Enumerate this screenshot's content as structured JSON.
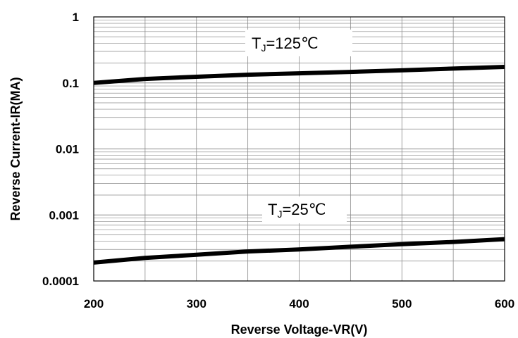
{
  "chart_data": {
    "type": "line",
    "title": "",
    "xlabel": "Reverse Voltage-VR(V)",
    "ylabel": "Reverse Current-IR(MA)",
    "xlim": [
      200,
      600
    ],
    "ylim": [
      0.0001,
      1
    ],
    "yscale": "log",
    "grid": true,
    "x_ticks": [
      "200",
      "300",
      "400",
      "500",
      "600"
    ],
    "y_ticks": [
      "0.0001",
      "0.001",
      "0.01",
      "0.1",
      "1"
    ],
    "series": [
      {
        "name": "TJ=125℃",
        "label_main": "T",
        "label_sub": "J",
        "label_rest": "=125℃",
        "color": "#000000",
        "x": [
          200,
          250,
          300,
          350,
          400,
          450,
          500,
          550,
          600
        ],
        "y": [
          0.1,
          0.115,
          0.124,
          0.133,
          0.14,
          0.147,
          0.155,
          0.165,
          0.175
        ]
      },
      {
        "name": "TJ=25℃",
        "label_main": "T",
        "label_sub": "J",
        "label_rest": "=25℃",
        "color": "#000000",
        "x": [
          200,
          250,
          300,
          350,
          400,
          450,
          500,
          550,
          600
        ],
        "y": [
          0.00019,
          0.000223,
          0.00025,
          0.00028,
          0.0003,
          0.00033,
          0.00036,
          0.00039,
          0.00043
        ]
      }
    ]
  }
}
